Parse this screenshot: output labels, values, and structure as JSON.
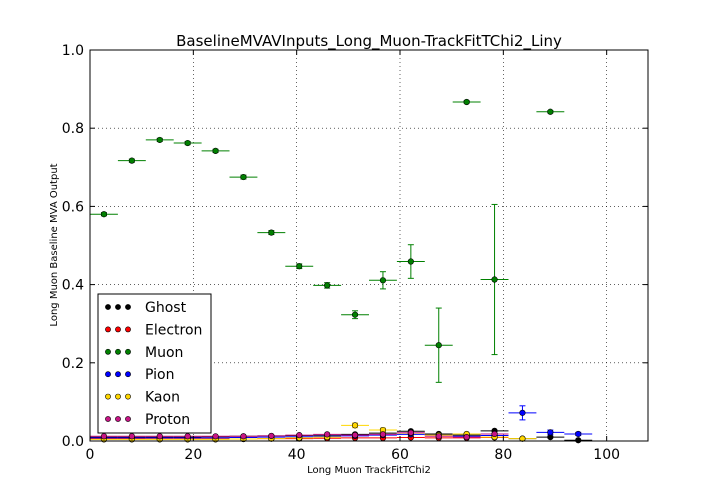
{
  "chart_data": {
    "type": "scatter",
    "title": "BaselineMVAVInputs_Long_Muon-TrackFitTChi2_Liny",
    "xlabel": "Long Muon TrackFitTChi2",
    "ylabel": "Long Muon Baseline MVA Output",
    "xlim": [
      0,
      108
    ],
    "ylim": [
      0,
      1.0
    ],
    "x_ticks": [
      "0",
      "20",
      "40",
      "60",
      "80",
      "100"
    ],
    "y_ticks": [
      "0.0",
      "0.2",
      "0.4",
      "0.6",
      "0.8",
      "1.0"
    ],
    "grid": true,
    "legend_position": "lower-left",
    "bin_half_width": 2.7,
    "series": [
      {
        "name": "Ghost",
        "color": "#000000",
        "points": [
          {
            "x": 2.7,
            "y": 0.01
          },
          {
            "x": 8.1,
            "y": 0.01
          },
          {
            "x": 13.5,
            "y": 0.01
          },
          {
            "x": 18.9,
            "y": 0.01
          },
          {
            "x": 24.3,
            "y": 0.011
          },
          {
            "x": 29.7,
            "y": 0.012
          },
          {
            "x": 35.1,
            "y": 0.013
          },
          {
            "x": 40.5,
            "y": 0.014
          },
          {
            "x": 45.9,
            "y": 0.015
          },
          {
            "x": 51.3,
            "y": 0.017
          },
          {
            "x": 56.7,
            "y": 0.02
          },
          {
            "x": 62.1,
            "y": 0.025
          },
          {
            "x": 67.5,
            "y": 0.018
          },
          {
            "x": 72.9,
            "y": 0.015
          },
          {
            "x": 78.3,
            "y": 0.026
          },
          {
            "x": 83.7,
            "y": 0.006
          },
          {
            "x": 89.1,
            "y": 0.01
          },
          {
            "x": 94.5,
            "y": 0.002
          }
        ]
      },
      {
        "name": "Electron",
        "color": "#ff0000",
        "points": [
          {
            "x": 2.7,
            "y": 0.006
          },
          {
            "x": 8.1,
            "y": 0.006
          },
          {
            "x": 13.5,
            "y": 0.005
          },
          {
            "x": 18.9,
            "y": 0.005
          },
          {
            "x": 24.3,
            "y": 0.005
          },
          {
            "x": 29.7,
            "y": 0.005
          },
          {
            "x": 35.1,
            "y": 0.006
          },
          {
            "x": 40.5,
            "y": 0.006
          },
          {
            "x": 45.9,
            "y": 0.007
          },
          {
            "x": 51.3,
            "y": 0.008
          },
          {
            "x": 56.7,
            "y": 0.008
          },
          {
            "x": 62.1,
            "y": 0.009
          },
          {
            "x": 67.5,
            "y": 0.008
          },
          {
            "x": 72.9,
            "y": 0.008
          },
          {
            "x": 78.3,
            "y": 0.009
          }
        ]
      },
      {
        "name": "Muon",
        "color": "#008000",
        "points": [
          {
            "x": 2.7,
            "y": 0.58,
            "err": 0.004
          },
          {
            "x": 8.1,
            "y": 0.717,
            "err": 0.004
          },
          {
            "x": 13.5,
            "y": 0.77,
            "err": 0.004
          },
          {
            "x": 18.9,
            "y": 0.762,
            "err": 0.004
          },
          {
            "x": 24.3,
            "y": 0.742,
            "err": 0.004
          },
          {
            "x": 29.7,
            "y": 0.675,
            "err": 0.005
          },
          {
            "x": 35.1,
            "y": 0.533,
            "err": 0.005
          },
          {
            "x": 40.5,
            "y": 0.447,
            "err": 0.006
          },
          {
            "x": 45.9,
            "y": 0.398,
            "err": 0.007
          },
          {
            "x": 51.3,
            "y": 0.323,
            "err": 0.01
          },
          {
            "x": 56.7,
            "y": 0.411,
            "err": 0.022
          },
          {
            "x": 62.1,
            "y": 0.459,
            "err": 0.043
          },
          {
            "x": 67.5,
            "y": 0.245,
            "err": 0.095
          },
          {
            "x": 72.9,
            "y": 0.867,
            "err": 0.003
          },
          {
            "x": 78.3,
            "y": 0.413,
            "err": 0.192
          },
          {
            "x": 89.1,
            "y": 0.842,
            "err": 0.003
          }
        ]
      },
      {
        "name": "Pion",
        "color": "#0000ff",
        "points": [
          {
            "x": 2.7,
            "y": 0.008
          },
          {
            "x": 8.1,
            "y": 0.008
          },
          {
            "x": 13.5,
            "y": 0.008
          },
          {
            "x": 18.9,
            "y": 0.008
          },
          {
            "x": 24.3,
            "y": 0.008
          },
          {
            "x": 29.7,
            "y": 0.009
          },
          {
            "x": 35.1,
            "y": 0.01
          },
          {
            "x": 40.5,
            "y": 0.011
          },
          {
            "x": 45.9,
            "y": 0.012
          },
          {
            "x": 51.3,
            "y": 0.013
          },
          {
            "x": 56.7,
            "y": 0.015
          },
          {
            "x": 62.1,
            "y": 0.017
          },
          {
            "x": 67.5,
            "y": 0.015
          },
          {
            "x": 72.9,
            "y": 0.012
          },
          {
            "x": 78.3,
            "y": 0.014
          },
          {
            "x": 83.7,
            "y": 0.072,
            "err": 0.018
          },
          {
            "x": 89.1,
            "y": 0.022,
            "err": 0.006
          },
          {
            "x": 94.5,
            "y": 0.018,
            "err": 0.004
          }
        ]
      },
      {
        "name": "Kaon",
        "color": "#ffd700",
        "points": [
          {
            "x": 2.7,
            "y": 0.004
          },
          {
            "x": 8.1,
            "y": 0.004
          },
          {
            "x": 13.5,
            "y": 0.004
          },
          {
            "x": 18.9,
            "y": 0.004
          },
          {
            "x": 24.3,
            "y": 0.004
          },
          {
            "x": 29.7,
            "y": 0.005
          },
          {
            "x": 35.1,
            "y": 0.006
          },
          {
            "x": 40.5,
            "y": 0.008
          },
          {
            "x": 45.9,
            "y": 0.01
          },
          {
            "x": 51.3,
            "y": 0.04,
            "err": 0.006
          },
          {
            "x": 56.7,
            "y": 0.028,
            "err": 0.005
          },
          {
            "x": 62.1,
            "y": 0.02
          },
          {
            "x": 67.5,
            "y": 0.015
          },
          {
            "x": 72.9,
            "y": 0.018
          },
          {
            "x": 78.3,
            "y": 0.01
          },
          {
            "x": 83.7,
            "y": 0.006
          }
        ]
      },
      {
        "name": "Proton",
        "color": "#c71585",
        "points": [
          {
            "x": 2.7,
            "y": 0.012
          },
          {
            "x": 8.1,
            "y": 0.012
          },
          {
            "x": 13.5,
            "y": 0.012
          },
          {
            "x": 18.9,
            "y": 0.012
          },
          {
            "x": 24.3,
            "y": 0.012
          },
          {
            "x": 29.7,
            "y": 0.012
          },
          {
            "x": 35.1,
            "y": 0.013
          },
          {
            "x": 40.5,
            "y": 0.015
          },
          {
            "x": 45.9,
            "y": 0.017
          },
          {
            "x": 51.3,
            "y": 0.015
          },
          {
            "x": 56.7,
            "y": 0.017
          },
          {
            "x": 62.1,
            "y": 0.021
          },
          {
            "x": 67.5,
            "y": 0.012
          },
          {
            "x": 72.9,
            "y": 0.01
          },
          {
            "x": 78.3,
            "y": 0.018
          }
        ]
      }
    ]
  }
}
